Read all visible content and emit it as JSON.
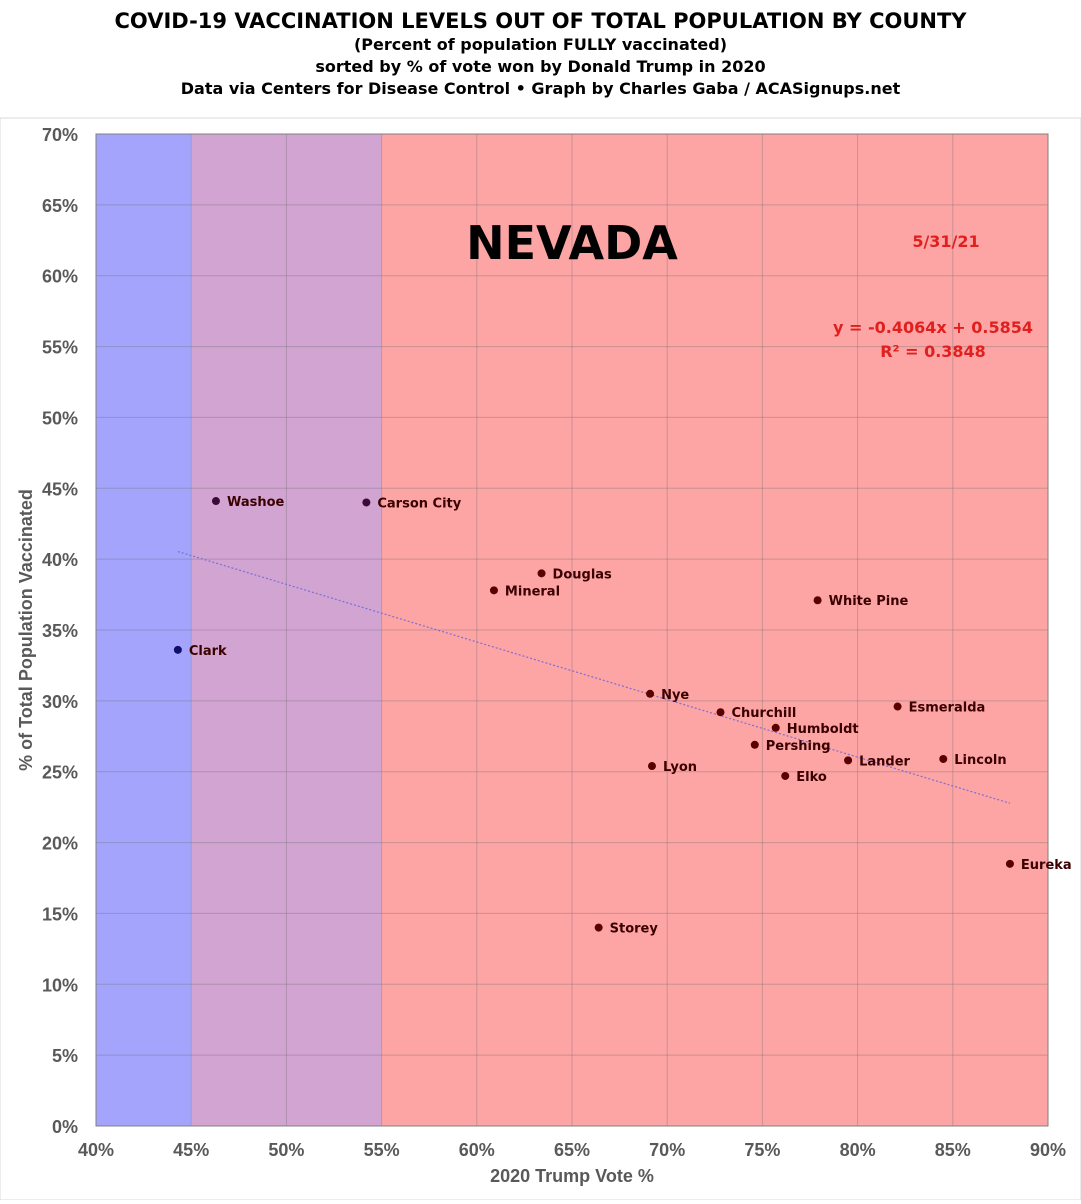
{
  "header": {
    "title": "COVID-19 VACCINATION LEVELS OUT OF TOTAL POPULATION BY COUNTY",
    "line2": "(Percent of population FULLY vaccinated)",
    "line3": "sorted by % of vote won by Donald Trump in 2020",
    "line4": "Data via Centers for Disease Control • Graph by Charles Gaba / ACASignups.net"
  },
  "chart_data": {
    "type": "scatter",
    "xlabel": "2020 Trump Vote %",
    "ylabel": "% of Total Population Vaccinated",
    "xlim": [
      40,
      90
    ],
    "ylim": [
      0,
      70
    ],
    "x_ticks": [
      "40%",
      "45%",
      "50%",
      "55%",
      "60%",
      "65%",
      "70%",
      "75%",
      "80%",
      "85%",
      "90%"
    ],
    "y_ticks": [
      "0%",
      "5%",
      "10%",
      "15%",
      "20%",
      "25%",
      "30%",
      "35%",
      "40%",
      "45%",
      "50%",
      "55%",
      "60%",
      "65%",
      "70%"
    ],
    "grid": true,
    "annotations": {
      "state": "NEVADA",
      "date": "5/31/21",
      "equation": "y = -0.4064x + 0.5854",
      "r_squared": "R² = 0.3848"
    },
    "bands": [
      {
        "from": 40,
        "to": 45,
        "color": "#a4a4fd"
      },
      {
        "from": 45,
        "to": 55,
        "color": "#d1a4d2"
      },
      {
        "from": 55,
        "to": 90,
        "color": "#fda4a4"
      }
    ],
    "trendline": {
      "slope": -0.4064,
      "intercept": 0.5854,
      "x_from": 44.3,
      "x_to": 88.0,
      "color": "#7b6fd6"
    },
    "points": [
      {
        "name": "Clark",
        "x": 44.3,
        "y": 33.6,
        "color": "#10106b"
      },
      {
        "name": "Washoe",
        "x": 46.3,
        "y": 44.1,
        "color": "#3a0a3a"
      },
      {
        "name": "Carson City",
        "x": 54.2,
        "y": 44.0,
        "color": "#3a0a3a"
      },
      {
        "name": "Douglas",
        "x": 63.4,
        "y": 39.0,
        "color": "#5a0000"
      },
      {
        "name": "Mineral",
        "x": 60.9,
        "y": 37.8,
        "color": "#5a0000"
      },
      {
        "name": "White Pine",
        "x": 77.9,
        "y": 37.1,
        "color": "#5a0000"
      },
      {
        "name": "Nye",
        "x": 69.1,
        "y": 30.5,
        "color": "#5a0000"
      },
      {
        "name": "Churchill",
        "x": 72.8,
        "y": 29.2,
        "color": "#5a0000"
      },
      {
        "name": "Humboldt",
        "x": 75.7,
        "y": 28.1,
        "color": "#5a0000"
      },
      {
        "name": "Esmeralda",
        "x": 82.1,
        "y": 29.6,
        "color": "#5a0000"
      },
      {
        "name": "Pershing",
        "x": 74.6,
        "y": 26.9,
        "color": "#5a0000"
      },
      {
        "name": "Lyon",
        "x": 69.2,
        "y": 25.4,
        "color": "#5a0000"
      },
      {
        "name": "Lander",
        "x": 79.5,
        "y": 25.8,
        "color": "#5a0000"
      },
      {
        "name": "Lincoln",
        "x": 84.5,
        "y": 25.9,
        "color": "#5a0000"
      },
      {
        "name": "Elko",
        "x": 76.2,
        "y": 24.7,
        "color": "#5a0000"
      },
      {
        "name": "Eureka",
        "x": 88.0,
        "y": 18.5,
        "color": "#5a0000"
      },
      {
        "name": "Storey",
        "x": 66.4,
        "y": 14.0,
        "color": "#5a0000"
      }
    ]
  }
}
